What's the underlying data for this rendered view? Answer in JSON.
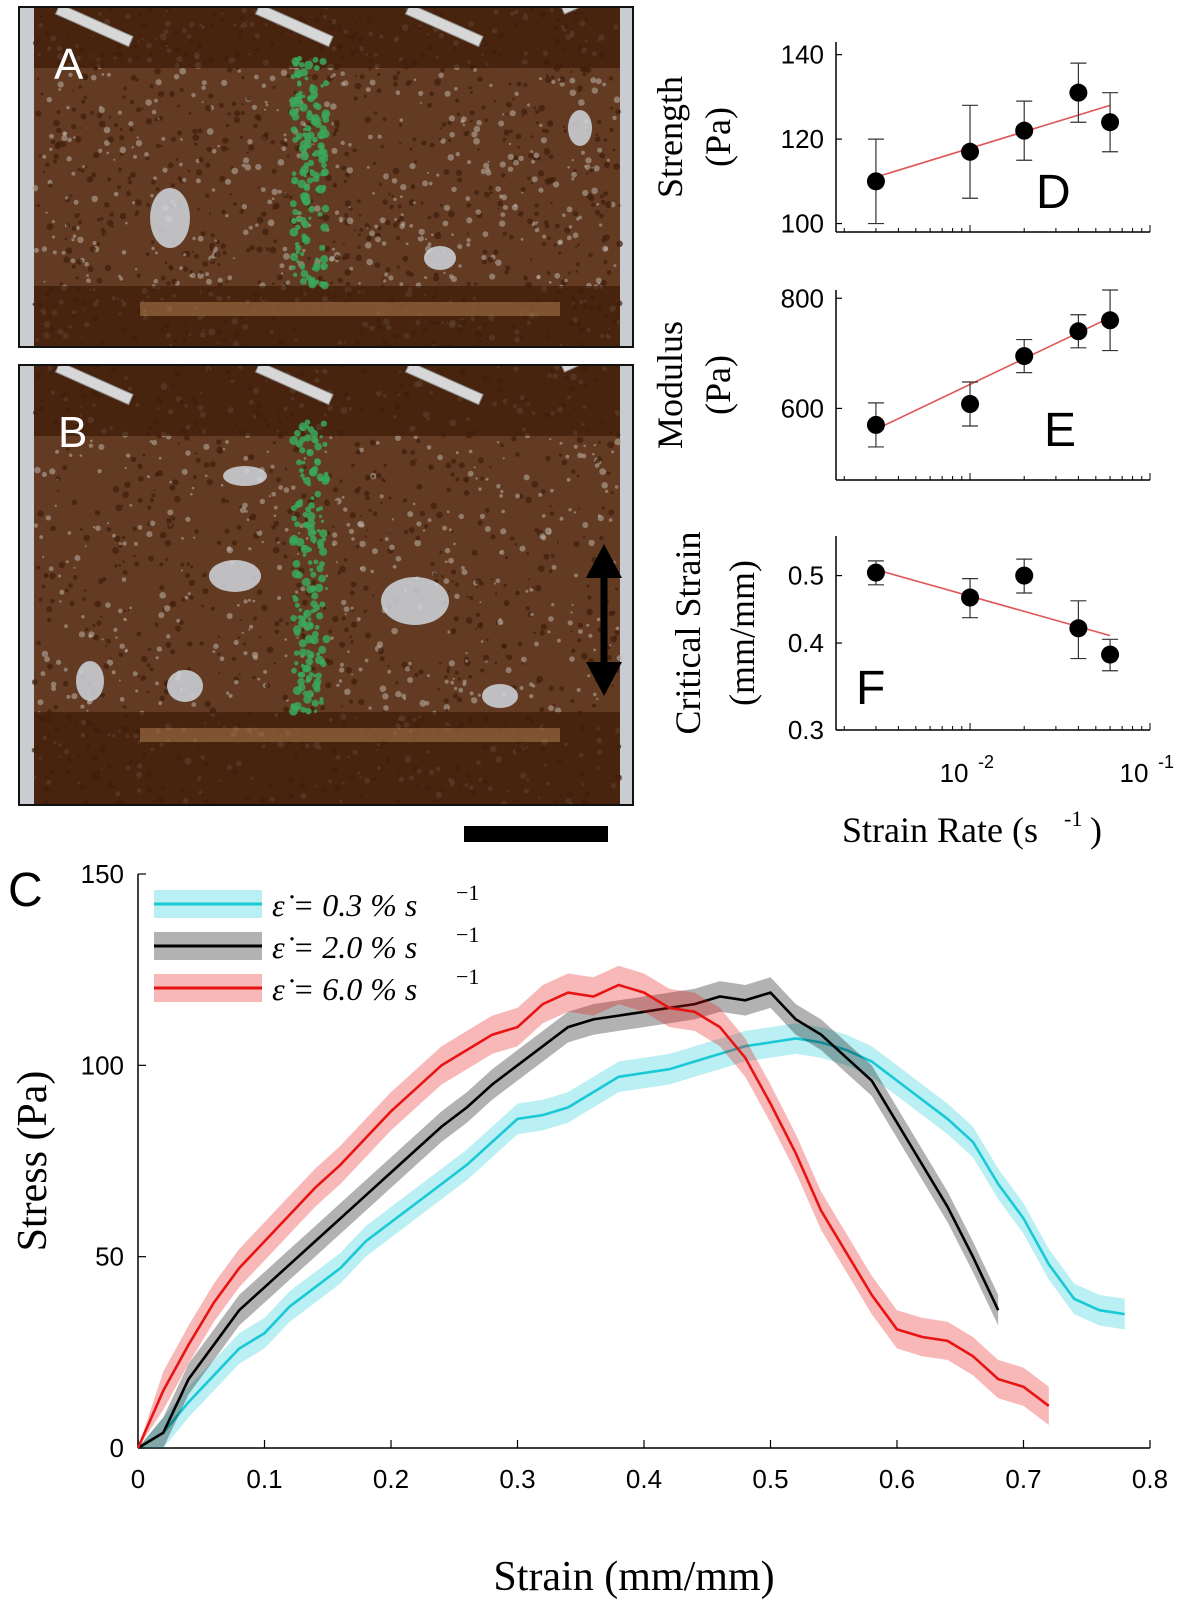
{
  "panels": {
    "A": "A",
    "B": "B",
    "C": "C",
    "D": "D",
    "E": "E",
    "F": "F"
  },
  "colors": {
    "ants": "#5a2e12",
    "ants_dark": "#3f1e0a",
    "background_gray": "#c9ccd0",
    "dye_green": "#3aa85a",
    "fit_line": "#e05555",
    "cyan": "#19c9d6",
    "black": "#000000",
    "red": "#e81414"
  },
  "chart_data": [
    {
      "id": "D",
      "type": "scatter",
      "xscale": "log",
      "xlim": [
        0.0018,
        0.1
      ],
      "ylabel": [
        "Strength",
        "(Pa)"
      ],
      "ylim": [
        98,
        143
      ],
      "yticks": [
        100,
        120,
        140
      ],
      "ytick_labels": [
        "100",
        "120",
        "140"
      ],
      "x": [
        0.003,
        0.01,
        0.02,
        0.04,
        0.06
      ],
      "y": [
        110,
        117,
        122,
        131,
        124
      ],
      "err": [
        10,
        11,
        7,
        7,
        7
      ],
      "fit": [
        [
          0.003,
          111
        ],
        [
          0.06,
          128
        ]
      ]
    },
    {
      "id": "E",
      "type": "scatter",
      "xscale": "log",
      "xlim": [
        0.0018,
        0.1
      ],
      "ylabel": [
        "Modulus",
        "(Pa)"
      ],
      "ylim": [
        470,
        815
      ],
      "yticks": [
        600,
        800
      ],
      "ytick_labels": [
        "600",
        "800"
      ],
      "x": [
        0.003,
        0.01,
        0.02,
        0.04,
        0.06
      ],
      "y": [
        570,
        608,
        695,
        740,
        760
      ],
      "err": [
        40,
        40,
        30,
        30,
        55
      ],
      "fit": [
        [
          0.003,
          562
        ],
        [
          0.06,
          765
        ]
      ]
    },
    {
      "id": "F",
      "type": "scatter",
      "xscale": "log",
      "yscale": "log",
      "xlim": [
        0.0018,
        0.1
      ],
      "ylim": [
        0.3,
        0.57
      ],
      "ylabel": [
        "Critical Strain",
        "(mm/mm)"
      ],
      "yticks": [
        0.3,
        0.4,
        0.5
      ],
      "ytick_labels": [
        "0.3",
        "0.4",
        "0.5"
      ],
      "xticks": [
        0.01,
        0.1
      ],
      "xtick_labels": [
        [
          "10",
          "-2"
        ],
        [
          "10",
          "-1"
        ]
      ],
      "xlabel": [
        "Strain Rate (s",
        "-1",
        ")"
      ],
      "x": [
        0.003,
        0.01,
        0.02,
        0.04,
        0.06
      ],
      "y": [
        0.505,
        0.465,
        0.5,
        0.42,
        0.385
      ],
      "err": [
        0.02,
        0.03,
        0.028,
        0.04,
        0.02
      ],
      "fit": [
        [
          0.003,
          0.51
        ],
        [
          0.06,
          0.41
        ]
      ]
    },
    {
      "id": "C",
      "type": "line",
      "xlabel": "Strain (mm/mm)",
      "ylabel": "Stress (Pa)",
      "xlim": [
        0,
        0.8
      ],
      "ylim": [
        0,
        150
      ],
      "xticks": [
        0,
        0.1,
        0.2,
        0.3,
        0.4,
        0.5,
        0.6,
        0.7,
        0.8
      ],
      "xtick_labels": [
        "0",
        "0.1",
        "0.2",
        "0.3",
        "0.4",
        "0.5",
        "0.6",
        "0.7",
        "0.8"
      ],
      "yticks": [
        0,
        50,
        100,
        150
      ],
      "ytick_labels": [
        "0",
        "50",
        "100",
        "150"
      ],
      "legend_position": "top-left",
      "series": [
        {
          "name": "ε̇ = 0.3 % s",
          "name_sup": "−1",
          "color": "cyan",
          "x": [
            0,
            0.02,
            0.04,
            0.06,
            0.08,
            0.1,
            0.12,
            0.14,
            0.16,
            0.18,
            0.2,
            0.22,
            0.24,
            0.26,
            0.28,
            0.3,
            0.32,
            0.34,
            0.36,
            0.38,
            0.4,
            0.42,
            0.44,
            0.46,
            0.48,
            0.5,
            0.52,
            0.54,
            0.56,
            0.58,
            0.6,
            0.62,
            0.64,
            0.66,
            0.68,
            0.7,
            0.72,
            0.74,
            0.76,
            0.78
          ],
          "y": [
            0,
            4,
            12,
            19,
            26,
            30,
            37,
            42,
            47,
            54,
            59,
            64,
            69,
            74,
            80,
            86,
            87,
            89,
            93,
            97,
            98,
            99,
            101,
            103,
            105,
            106,
            107,
            106,
            104,
            101,
            96,
            91,
            86,
            80,
            69,
            60,
            48,
            39,
            36,
            35
          ],
          "band": 4
        },
        {
          "name": "ε̇ = 2.0 % s",
          "name_sup": "−1",
          "color": "black",
          "x": [
            0,
            0.02,
            0.04,
            0.06,
            0.08,
            0.1,
            0.12,
            0.14,
            0.16,
            0.18,
            0.2,
            0.22,
            0.24,
            0.26,
            0.28,
            0.3,
            0.32,
            0.34,
            0.36,
            0.38,
            0.4,
            0.42,
            0.44,
            0.46,
            0.48,
            0.5,
            0.52,
            0.54,
            0.56,
            0.58,
            0.6,
            0.62,
            0.64,
            0.66,
            0.68
          ],
          "y": [
            0,
            4,
            18,
            27,
            36,
            42,
            48,
            54,
            60,
            66,
            72,
            78,
            84,
            89,
            95,
            100,
            105,
            110,
            112,
            113,
            114,
            115,
            116,
            118,
            117,
            119,
            112,
            108,
            102,
            96,
            85,
            74,
            63,
            50,
            36
          ],
          "band": 4
        },
        {
          "name": "ε̇ = 6.0 % s",
          "name_sup": "−1",
          "color": "red",
          "x": [
            0,
            0.02,
            0.04,
            0.06,
            0.08,
            0.1,
            0.12,
            0.14,
            0.16,
            0.18,
            0.2,
            0.22,
            0.24,
            0.26,
            0.28,
            0.3,
            0.32,
            0.34,
            0.36,
            0.38,
            0.4,
            0.42,
            0.44,
            0.46,
            0.48,
            0.5,
            0.52,
            0.54,
            0.56,
            0.58,
            0.6,
            0.62,
            0.64,
            0.66,
            0.68,
            0.7,
            0.72
          ],
          "y": [
            0,
            15,
            27,
            38,
            47,
            54,
            61,
            68,
            74,
            81,
            88,
            94,
            100,
            104,
            108,
            110,
            116,
            119,
            118,
            121,
            119,
            115,
            114,
            110,
            102,
            90,
            77,
            62,
            51,
            40,
            31,
            29,
            28,
            24,
            18,
            16,
            11
          ],
          "band": 5
        }
      ]
    }
  ]
}
